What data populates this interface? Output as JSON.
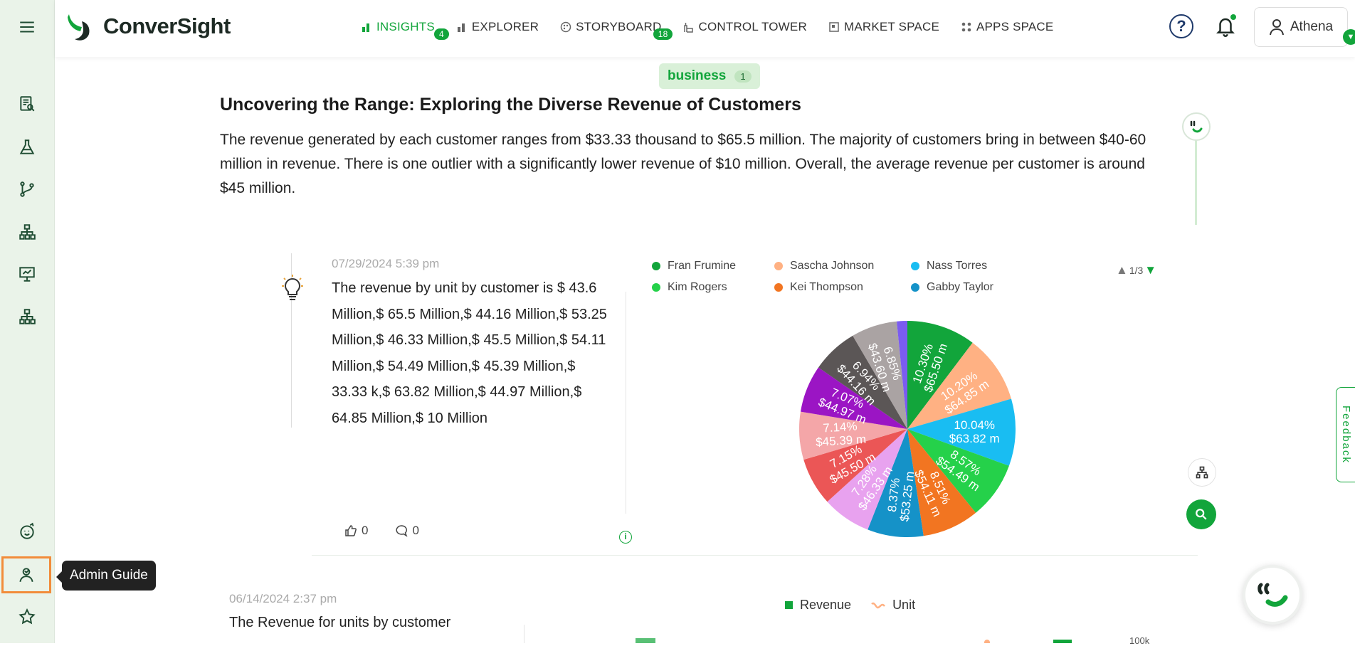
{
  "app": {
    "brand": "ConverSight",
    "nav": [
      {
        "label": "INSIGHTS",
        "badge": "4",
        "icon": "bar-chart-icon",
        "active": true
      },
      {
        "label": "EXPLORER",
        "badge": "",
        "icon": "bar-chart-icon",
        "active": false
      },
      {
        "label": "STORYBOARD",
        "badge": "18",
        "icon": "palette-icon",
        "active": false
      },
      {
        "label": "CONTROL TOWER",
        "badge": "",
        "icon": "tower-icon",
        "active": false
      },
      {
        "label": "MARKET SPACE",
        "badge": "",
        "icon": "store-icon",
        "active": false
      },
      {
        "label": "APPS SPACE",
        "badge": "",
        "icon": "grid-icon",
        "active": false
      }
    ],
    "user_name": "Athena",
    "help_glyph": "?",
    "accent_color": "#12a53b"
  },
  "sidebar": {
    "tooltip": "Admin Guide",
    "icons": [
      "menu-icon",
      "report-search-icon",
      "flask-icon",
      "branch-icon",
      "hierarchy-icon",
      "presentation-icon",
      "hierarchy-icon",
      "assistant-icon",
      "admin-guide-icon",
      "star-icon"
    ]
  },
  "insight": {
    "tag": "business",
    "tag_count": "1",
    "title": "Uncovering the Range: Exploring the Diverse Revenue of Customers",
    "summary": "The revenue generated by each customer ranges from $33.33 thousand to $65.5 million. The majority of customers bring in between $40-60 million in revenue. There is one outlier with a significantly lower revenue of $10 million. Overall, the average revenue per customer is around $45 million."
  },
  "card1": {
    "date": "07/29/2024 5:39 pm",
    "text": "The revenue by unit by customer is $ 43.6 Million,$ 65.5 Million,$ 44.16 Million,$ 53.25 Million,$ 46.33 Million,$ 45.5 Million,$ 54.11 Million,$ 54.49 Million,$ 45.39 Million,$ 33.33 k,$ 63.82 Million,$ 44.97 Million,$ 64.85 Million,$ 10 Million",
    "likes": "0",
    "comments": "0",
    "info_glyph": "i",
    "pager": "1/3",
    "legend": [
      {
        "name": "Fran Frumine",
        "color": "#12a53b"
      },
      {
        "name": "Sascha Johnson",
        "color": "#ffb183"
      },
      {
        "name": "Nass Torres",
        "color": "#19bdf2"
      },
      {
        "name": "Kim Rogers",
        "color": "#25d14a"
      },
      {
        "name": "Kei Thompson",
        "color": "#f27521"
      },
      {
        "name": "Gabby Taylor",
        "color": "#1592c8"
      }
    ]
  },
  "chart_data": {
    "type": "pie",
    "slices": [
      {
        "value": 65.5,
        "percent": "10.30%",
        "label": "$65.50 m",
        "color": "#12a53b"
      },
      {
        "value": 64.85,
        "percent": "10.20%",
        "label": "$64.85 m",
        "color": "#ffb183"
      },
      {
        "value": 63.82,
        "percent": "10.04%",
        "label": "$63.82 m",
        "color": "#19bdf2"
      },
      {
        "value": 54.49,
        "percent": "8.57%",
        "label": "$54.49 m",
        "color": "#25d14a"
      },
      {
        "value": 54.11,
        "percent": "8.51%",
        "label": "$54.11 m",
        "color": "#f27521"
      },
      {
        "value": 53.25,
        "percent": "8.37%",
        "label": "$53.25 m",
        "color": "#1592c8"
      },
      {
        "value": 46.33,
        "percent": "7.28%",
        "label": "$46.33 m",
        "color": "#e8a2ef"
      },
      {
        "value": 45.5,
        "percent": "7.15%",
        "label": "$45.50 m",
        "color": "#eb5656"
      },
      {
        "value": 45.39,
        "percent": "7.14%",
        "label": "$45.39 m",
        "color": "#f4a6a8"
      },
      {
        "value": 44.97,
        "percent": "7.07%",
        "label": "$44.97 m",
        "color": "#9b15c4"
      },
      {
        "value": 44.16,
        "percent": "6.94%",
        "label": "$44.16 m",
        "color": "#5b5656"
      },
      {
        "value": 43.6,
        "percent": "6.85%",
        "label": "$43.60 m",
        "color": "#aaa3a3"
      },
      {
        "value": 10.0,
        "percent": "",
        "label": "",
        "color": "#7b5cf0"
      }
    ]
  },
  "card2": {
    "date": "06/14/2024 2:37 pm",
    "text": "The Revenue for units by customer",
    "legend": [
      {
        "name": "Revenue",
        "color": "#12a53b"
      },
      {
        "name": "Unit",
        "color": "#ffb183"
      }
    ],
    "axis_tick": "100k"
  },
  "feedback_label": "Feedback"
}
